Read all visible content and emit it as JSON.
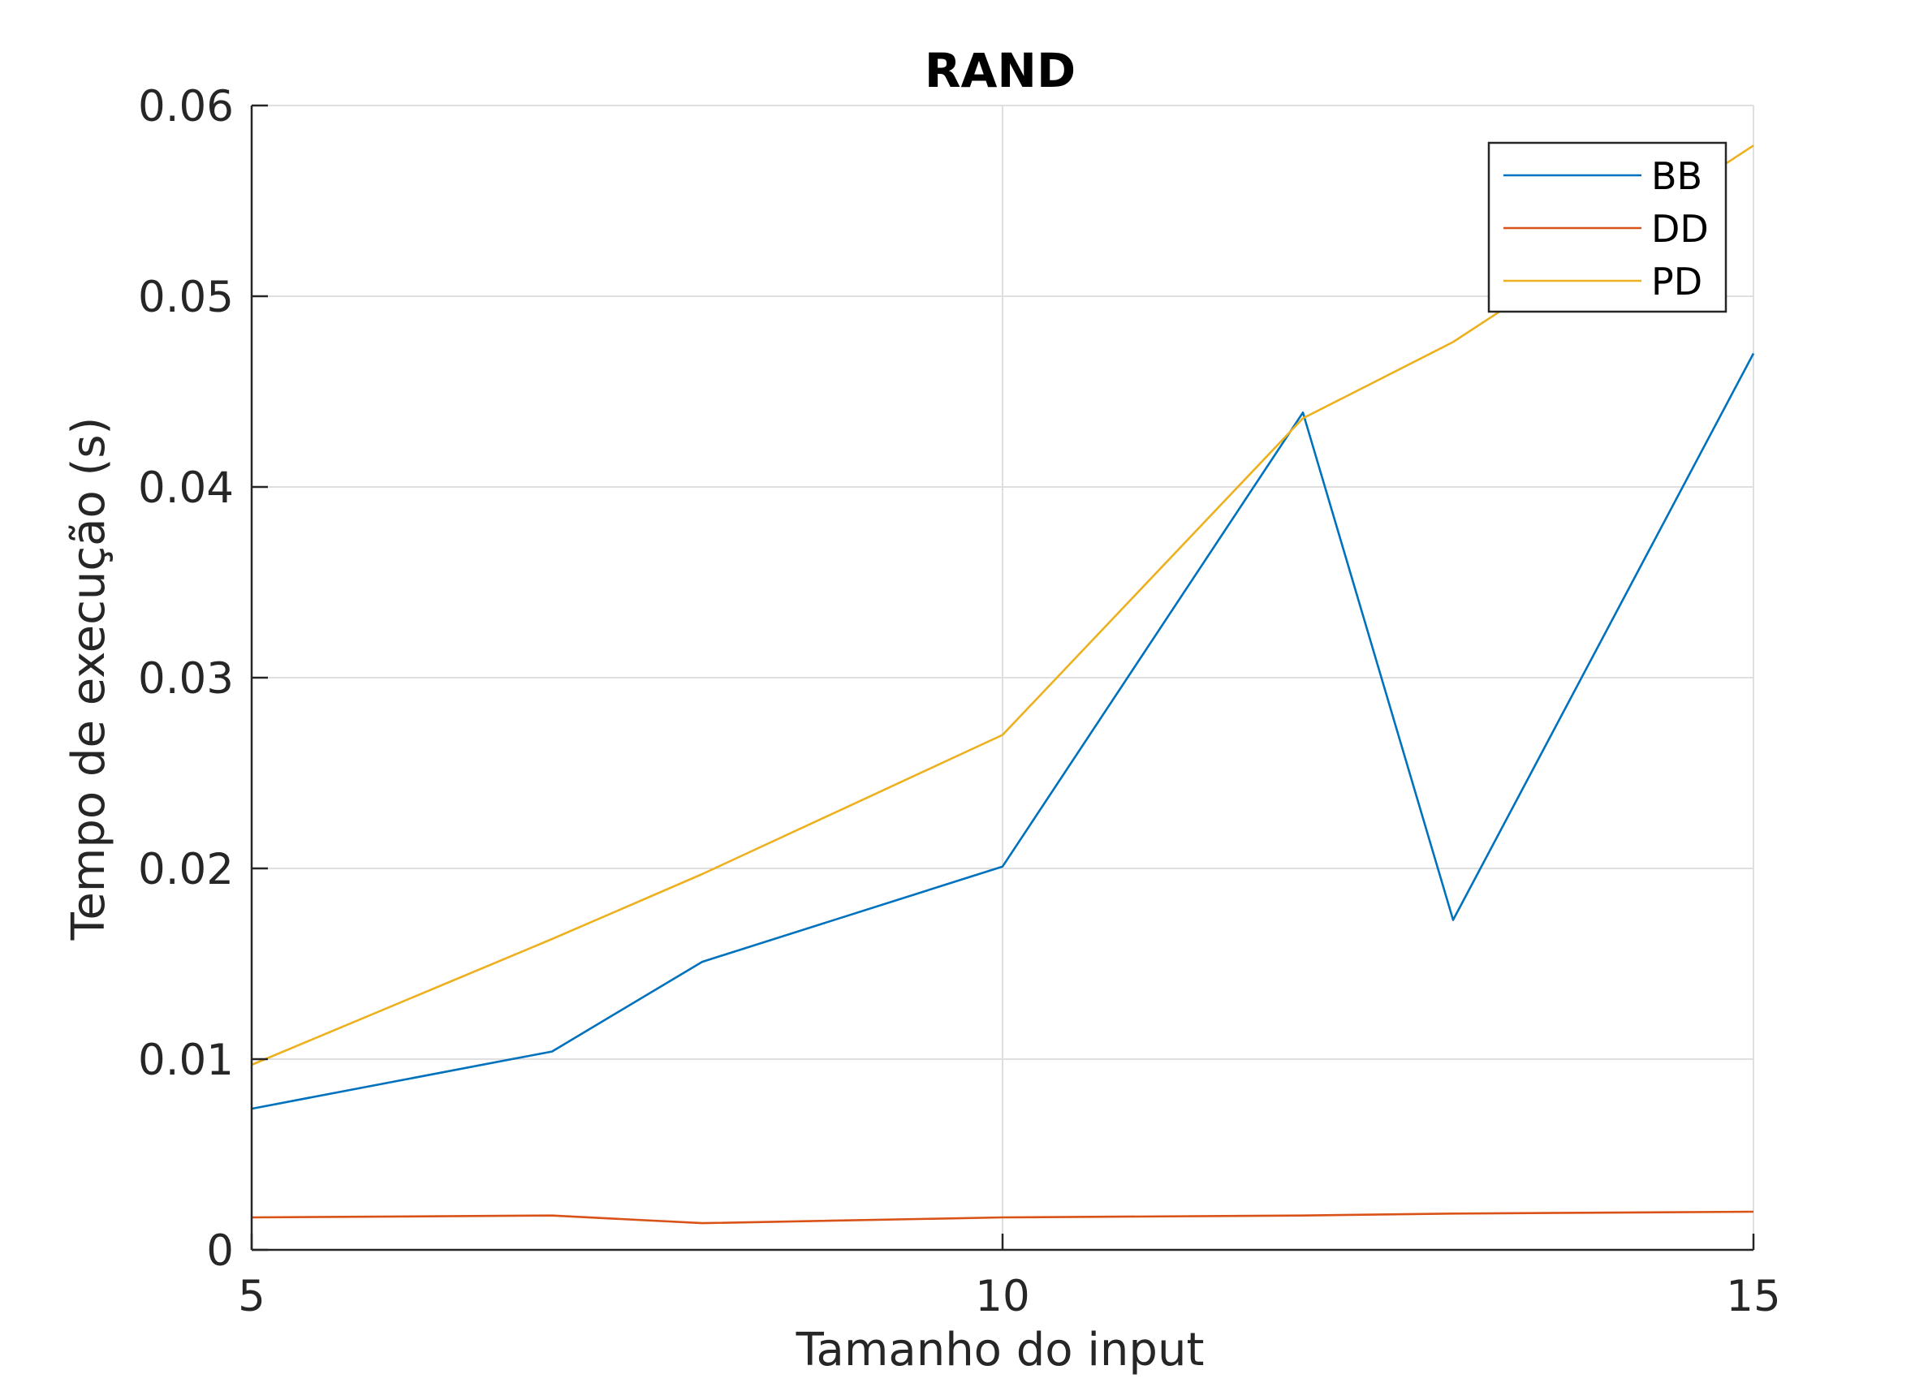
{
  "chart_data": {
    "type": "line",
    "title": "RAND",
    "xlabel": "Tamanho do input",
    "ylabel": "Tempo de execução (s)",
    "xlim": [
      5,
      15
    ],
    "ylim": [
      0,
      0.06
    ],
    "xticks": [
      5,
      10,
      15
    ],
    "xtick_labels": [
      "5",
      "10",
      "15"
    ],
    "yticks": [
      0,
      0.01,
      0.02,
      0.03,
      0.04,
      0.05,
      0.06
    ],
    "ytick_labels": [
      "0",
      "0.01",
      "0.02",
      "0.03",
      "0.04",
      "0.05",
      "0.06"
    ],
    "grid": true,
    "legend_position": "top-right",
    "x": [
      5,
      7,
      8,
      10,
      12,
      13,
      15
    ],
    "series": [
      {
        "name": "BB",
        "color": "#0072BD",
        "values": [
          0.0074,
          0.0104,
          0.0151,
          0.0201,
          0.0439,
          0.0173,
          0.047
        ]
      },
      {
        "name": "DD",
        "color": "#D95319",
        "values": [
          0.0017,
          0.0018,
          0.0014,
          0.0017,
          0.0018,
          0.0019,
          0.002
        ]
      },
      {
        "name": "PD",
        "color": "#EDB120",
        "values": [
          0.0097,
          0.0163,
          0.0197,
          0.027,
          0.0436,
          0.0476,
          0.0579
        ]
      }
    ]
  }
}
